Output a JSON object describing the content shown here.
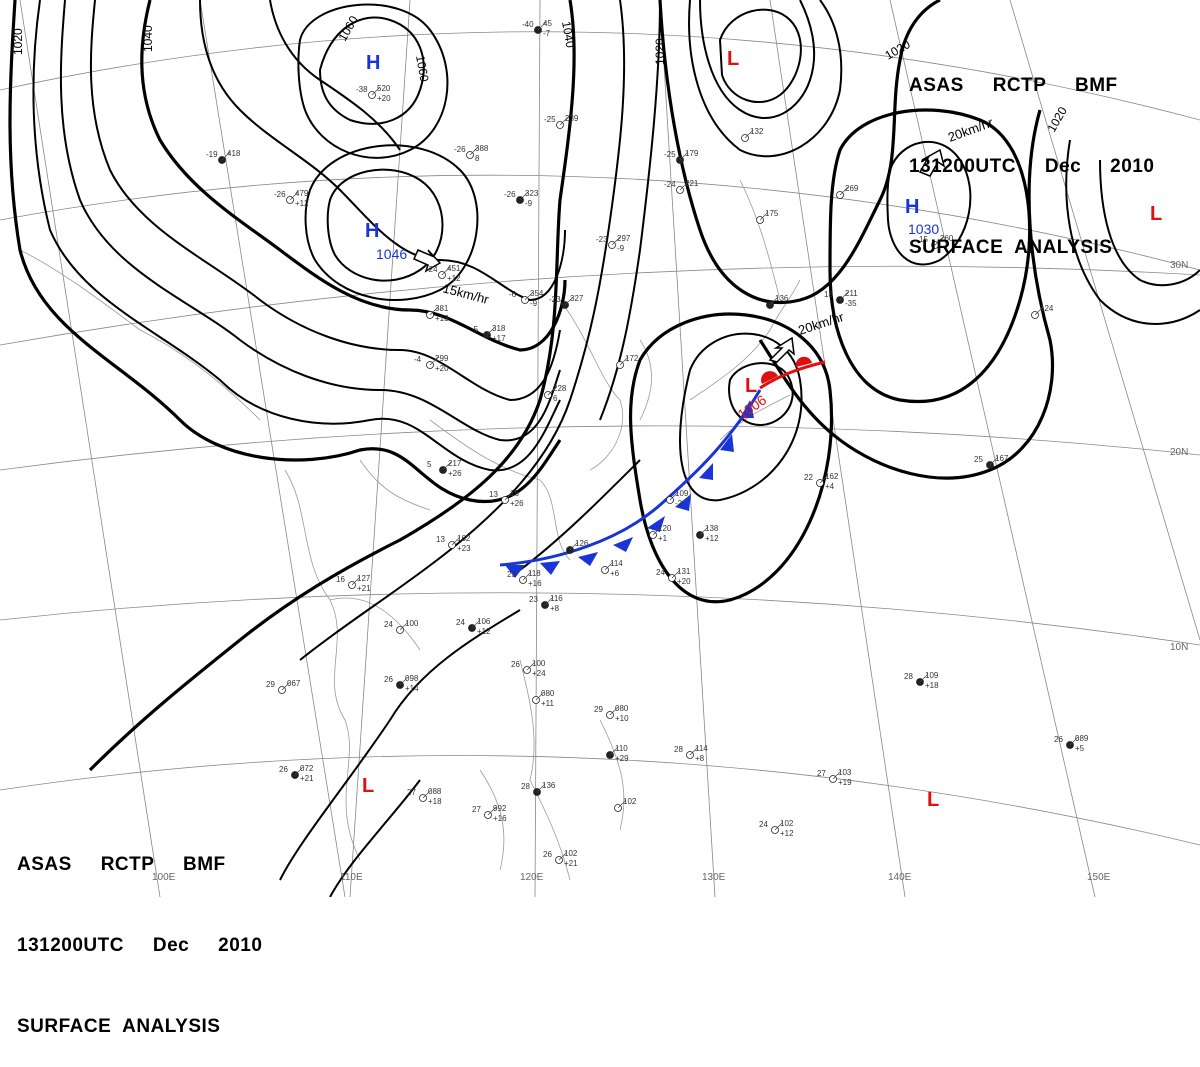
{
  "title": {
    "line1": [
      "ASAS",
      "RCTP",
      "BMF"
    ],
    "line2": [
      "131200UTC",
      "Dec",
      "2010"
    ],
    "line3": "SURFACE  ANALYSIS"
  },
  "longitude_labels": [
    "100E",
    "110E",
    "120E",
    "130E",
    "140E",
    "150E"
  ],
  "latitude_labels": [
    "30N",
    "20N",
    "10N"
  ],
  "isobar_labels": [
    "1020",
    "1040",
    "1060",
    "1060",
    "1040",
    "1020",
    "1020",
    "1020"
  ],
  "pressure_centers": [
    {
      "type": "H",
      "value": ""
    },
    {
      "type": "H",
      "value": "1046"
    },
    {
      "type": "H",
      "value": "1030"
    },
    {
      "type": "L",
      "value": ""
    },
    {
      "type": "L",
      "value": ""
    },
    {
      "type": "L",
      "value": "1006"
    },
    {
      "type": "L",
      "value": ""
    },
    {
      "type": "L",
      "value": ""
    }
  ],
  "motion_labels": [
    "15km/hr",
    "20km/hr",
    "20km/hr"
  ],
  "colors": {
    "high": "#1a35d6",
    "low": "#e01010",
    "cold_front": "#1a35d6",
    "warm_front": "#e01010",
    "isobar": "#000000",
    "grid": "#888888"
  },
  "station_obs": [
    {
      "t": "-40",
      "p": "45",
      "d": "-7"
    },
    {
      "t": "-38",
      "p": "520",
      "d": "+20"
    },
    {
      "t": "-26",
      "p": "479",
      "d": "+12"
    },
    {
      "t": "-19",
      "p": "418",
      "d": ""
    },
    {
      "t": "-26",
      "p": "388",
      "d": "8"
    },
    {
      "t": "-25",
      "p": "239",
      "d": ""
    },
    {
      "t": "-26",
      "p": "323",
      "d": "-9"
    },
    {
      "t": "-24",
      "p": "451",
      "d": "+12"
    },
    {
      "t": "",
      "p": "381",
      "d": "+13"
    },
    {
      "t": "-5",
      "p": "318",
      "d": "+17"
    },
    {
      "t": "-4",
      "p": "299",
      "d": "+20"
    },
    {
      "t": "-6",
      "p": "354",
      "d": "-9"
    },
    {
      "t": "-23",
      "p": "327",
      "d": ""
    },
    {
      "t": "-23",
      "p": "297",
      "d": "-9"
    },
    {
      "t": "-24",
      "p": "221",
      "d": ""
    },
    {
      "t": "-25",
      "p": "179",
      "d": ""
    },
    {
      "t": "",
      "p": "132",
      "d": ""
    },
    {
      "t": "",
      "p": "175",
      "d": ""
    },
    {
      "t": "",
      "p": "136",
      "d": ""
    },
    {
      "t": "",
      "p": "172",
      "d": ""
    },
    {
      "t": "",
      "p": "228",
      "d": "6"
    },
    {
      "t": "5",
      "p": "217",
      "d": "+26"
    },
    {
      "t": "13",
      "p": "16",
      "d": "+26"
    },
    {
      "t": "13",
      "p": "162",
      "d": "+23"
    },
    {
      "t": "",
      "p": "126",
      "d": ""
    },
    {
      "t": "23",
      "p": "118",
      "d": "+16"
    },
    {
      "t": "",
      "p": "114",
      "d": "+6"
    },
    {
      "t": "23",
      "p": "116",
      "d": "+8"
    },
    {
      "t": "16",
      "p": "127",
      "d": "+21"
    },
    {
      "t": "24",
      "p": "100",
      "d": ""
    },
    {
      "t": "24",
      "p": "106",
      "d": "+12"
    },
    {
      "t": "",
      "p": "120",
      "d": "+1"
    },
    {
      "t": "",
      "p": "109",
      "d": "-2"
    },
    {
      "t": "",
      "p": "138",
      "d": "+12"
    },
    {
      "t": "24",
      "p": "131",
      "d": "+20"
    },
    {
      "t": "22",
      "p": "162",
      "d": "+4"
    },
    {
      "t": "25",
      "p": "167",
      "d": ""
    },
    {
      "t": "",
      "p": "269",
      "d": ""
    },
    {
      "t": "15",
      "p": "260",
      "d": ""
    },
    {
      "t": "13",
      "p": "211",
      "d": "-35"
    },
    {
      "t": "",
      "p": "124",
      "d": ""
    },
    {
      "t": "29",
      "p": "067",
      "d": ""
    },
    {
      "t": "26",
      "p": "098",
      "d": "+14"
    },
    {
      "t": "26",
      "p": "100",
      "d": "+24"
    },
    {
      "t": "",
      "p": "080",
      "d": "+11"
    },
    {
      "t": "",
      "p": "110",
      "d": "+29"
    },
    {
      "t": "29",
      "p": "080",
      "d": "+10"
    },
    {
      "t": "28",
      "p": "114",
      "d": "+8"
    },
    {
      "t": "26",
      "p": "072",
      "d": "+21"
    },
    {
      "t": "27",
      "p": "088",
      "d": "+18"
    },
    {
      "t": "27",
      "p": "992",
      "d": "+16"
    },
    {
      "t": "28",
      "p": "136",
      "d": ""
    },
    {
      "t": "",
      "p": "102",
      "d": ""
    },
    {
      "t": "26",
      "p": "102",
      "d": "+21"
    },
    {
      "t": "28",
      "p": "109",
      "d": "+18"
    },
    {
      "t": "27",
      "p": "103",
      "d": "+19"
    },
    {
      "t": "24",
      "p": "102",
      "d": "+12"
    },
    {
      "t": "26",
      "p": "089",
      "d": "+5"
    }
  ]
}
